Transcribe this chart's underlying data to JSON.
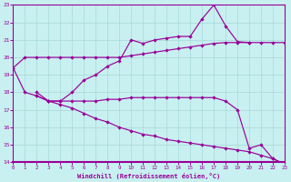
{
  "xlabel": "Windchill (Refroidissement éolien,°C)",
  "bg_color": "#c8f0f0",
  "grid_color": "#a8d8d8",
  "line_color": "#990099",
  "xlim": [
    0,
    23
  ],
  "ylim": [
    14,
    23
  ],
  "xticks": [
    0,
    1,
    2,
    3,
    4,
    5,
    6,
    7,
    8,
    9,
    10,
    11,
    12,
    13,
    14,
    15,
    16,
    17,
    18,
    19,
    20,
    21,
    22,
    23
  ],
  "yticks": [
    14,
    15,
    16,
    17,
    18,
    19,
    20,
    21,
    22,
    23
  ],
  "line1_x": [
    0,
    1,
    2,
    3,
    4,
    5,
    6,
    7,
    8,
    9,
    10,
    11,
    12,
    13,
    14,
    15,
    16,
    17,
    18,
    19,
    20
  ],
  "line1_y": [
    19.4,
    20.0,
    20.0,
    20.0,
    20.0,
    20.0,
    20.0,
    20.0,
    20.0,
    20.0,
    20.1,
    20.2,
    20.3,
    20.4,
    20.5,
    20.6,
    20.7,
    20.8,
    20.85,
    20.85,
    20.85
  ],
  "line2_x": [
    2,
    3,
    4,
    5,
    6,
    7,
    8,
    9,
    10,
    11,
    12,
    13,
    14,
    15,
    16,
    17,
    18,
    19,
    20,
    21,
    22,
    23
  ],
  "line2_y": [
    18.0,
    17.5,
    17.5,
    18.0,
    18.7,
    19.0,
    19.5,
    19.8,
    21.0,
    20.8,
    21.0,
    21.1,
    21.2,
    21.2,
    22.2,
    23.0,
    21.8,
    20.9,
    20.85,
    20.85,
    20.85,
    20.85
  ],
  "line3_x": [
    0,
    1,
    2,
    3,
    4,
    5,
    6,
    7,
    8,
    9,
    10,
    11,
    12,
    13,
    14,
    15,
    16,
    17,
    18,
    19,
    20,
    21,
    22,
    23
  ],
  "line3_y": [
    19.4,
    18.0,
    17.8,
    17.5,
    17.5,
    17.5,
    17.5,
    17.5,
    17.6,
    17.6,
    17.7,
    17.7,
    17.7,
    17.7,
    17.7,
    17.7,
    17.7,
    17.7,
    17.5,
    17.0,
    14.8,
    15.0,
    14.2,
    13.9
  ],
  "line4_x": [
    2,
    3,
    4,
    5,
    6,
    7,
    8,
    9,
    10,
    11,
    12,
    13,
    14,
    15,
    16,
    17,
    18,
    19,
    20,
    21,
    22,
    23
  ],
  "line4_y": [
    17.8,
    17.5,
    17.3,
    17.1,
    16.8,
    16.5,
    16.3,
    16.0,
    15.8,
    15.6,
    15.5,
    15.3,
    15.2,
    15.1,
    15.0,
    14.9,
    14.8,
    14.7,
    14.6,
    14.4,
    14.2,
    13.9
  ]
}
